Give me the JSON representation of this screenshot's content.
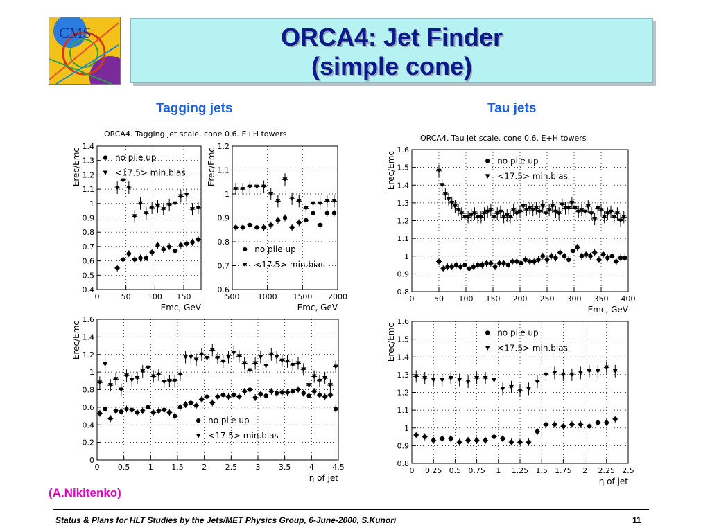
{
  "header": {
    "title_line1": "ORCA4: Jet Finder",
    "title_line2": "(simple cone)",
    "logo_text": "CMS"
  },
  "sections": {
    "tagging": "Tagging jets",
    "tau": "Tau jets"
  },
  "credit": "(A.Nikitenko)",
  "footer": {
    "text": "Status & Plans for HLT Studies by the Jets/MET Physics Group, 6-June-2000, S.Kunori",
    "page": "11"
  },
  "plot_titles": {
    "tagging": "ORCA4. Tagging jet scale. cone 0.6. E+H towers",
    "tau": "ORCA4. Tau jet scale. cone 0.6. E+H towers"
  },
  "legend": {
    "nopile": "no pile up",
    "minbias": "<17.5> min.bias"
  },
  "chart_data": [
    {
      "id": "tag-low",
      "type": "scatter",
      "xlabel": "Emc, GeV",
      "ylabel": "Erec/Emc",
      "xlim": [
        0,
        180
      ],
      "ylim": [
        0.4,
        1.4
      ],
      "xticks": [
        0,
        50,
        100,
        150
      ],
      "yticks": [
        0.4,
        0.5,
        0.6,
        0.7,
        0.8,
        0.9,
        1,
        1.1,
        1.2,
        1.3,
        1.4
      ],
      "grid": true,
      "legend_position": "top-left",
      "series": [
        {
          "name": "no pile up",
          "marker": "circle",
          "x": [
            35,
            45,
            55,
            65,
            75,
            85,
            95,
            105,
            115,
            125,
            135,
            145,
            155,
            165,
            175
          ],
          "y": [
            0.55,
            0.61,
            0.65,
            0.61,
            0.62,
            0.62,
            0.66,
            0.71,
            0.68,
            0.7,
            0.67,
            0.71,
            0.72,
            0.73,
            0.75
          ]
        },
        {
          "name": "<17.5> min.bias",
          "marker": "triangle",
          "x": [
            35,
            45,
            55,
            65,
            75,
            85,
            95,
            105,
            115,
            125,
            135,
            145,
            155,
            165,
            175
          ],
          "y": [
            1.11,
            1.16,
            1.11,
            0.91,
            1.0,
            0.93,
            0.97,
            0.98,
            0.96,
            0.99,
            1.0,
            1.05,
            1.06,
            0.96,
            0.97
          ]
        }
      ]
    },
    {
      "id": "tag-high",
      "type": "scatter",
      "xlabel": "Emc, GeV",
      "ylabel": "Erec/Emc",
      "xlim": [
        500,
        2000
      ],
      "ylim": [
        0.6,
        1.2
      ],
      "xticks": [
        500,
        1000,
        1500,
        2000
      ],
      "yticks": [
        0.6,
        0.7,
        0.8,
        0.9,
        1,
        1.1,
        1.2
      ],
      "grid": true,
      "legend_position": "bottom-left",
      "series": [
        {
          "name": "no pile up",
          "marker": "circle",
          "x": [
            550,
            650,
            750,
            850,
            950,
            1050,
            1150,
            1250,
            1350,
            1450,
            1550,
            1650,
            1750,
            1850,
            1950
          ],
          "y": [
            0.86,
            0.86,
            0.87,
            0.86,
            0.86,
            0.87,
            0.89,
            0.9,
            0.86,
            0.88,
            0.89,
            0.92,
            0.87,
            0.92,
            0.92
          ]
        },
        {
          "name": "<17.5> min.bias",
          "marker": "triangle",
          "x": [
            550,
            650,
            750,
            850,
            950,
            1050,
            1150,
            1250,
            1350,
            1450,
            1550,
            1650,
            1750,
            1850,
            1950
          ],
          "y": [
            1.02,
            1.02,
            1.03,
            1.03,
            1.03,
            1.0,
            0.97,
            1.06,
            0.98,
            0.97,
            0.94,
            0.96,
            0.96,
            0.97,
            0.97
          ]
        }
      ]
    },
    {
      "id": "tag-eta",
      "type": "scatter",
      "xlabel": "η of jet",
      "ylabel": "Erec/Emc",
      "xlim": [
        0,
        4.5
      ],
      "ylim": [
        0,
        1.6
      ],
      "xticks": [
        0,
        0.5,
        1,
        1.5,
        2,
        2.5,
        3,
        3.5,
        4,
        4.5
      ],
      "yticks": [
        0,
        0.2,
        0.4,
        0.6,
        0.8,
        1,
        1.2,
        1.4,
        1.6
      ],
      "grid": true,
      "legend_position": "bottom-right",
      "series": [
        {
          "name": "no pile up",
          "marker": "circle",
          "x": [
            0.05,
            0.15,
            0.25,
            0.35,
            0.45,
            0.55,
            0.65,
            0.75,
            0.85,
            0.95,
            1.05,
            1.15,
            1.25,
            1.35,
            1.45,
            1.55,
            1.65,
            1.75,
            1.85,
            1.95,
            2.05,
            2.15,
            2.25,
            2.35,
            2.45,
            2.55,
            2.65,
            2.75,
            2.85,
            2.95,
            3.05,
            3.15,
            3.25,
            3.35,
            3.45,
            3.55,
            3.65,
            3.75,
            3.85,
            3.95,
            4.05,
            4.15,
            4.25,
            4.35,
            4.45
          ],
          "y": [
            0.53,
            0.58,
            0.47,
            0.56,
            0.55,
            0.58,
            0.57,
            0.54,
            0.56,
            0.6,
            0.54,
            0.56,
            0.57,
            0.54,
            0.5,
            0.6,
            0.63,
            0.65,
            0.62,
            0.69,
            0.72,
            0.65,
            0.72,
            0.74,
            0.72,
            0.74,
            0.72,
            0.78,
            0.8,
            0.71,
            0.75,
            0.73,
            0.78,
            0.76,
            0.77,
            0.77,
            0.78,
            0.8,
            0.76,
            0.73,
            0.78,
            0.74,
            0.72,
            0.74,
            0.58
          ]
        },
        {
          "name": "<17.5> min.bias",
          "marker": "triangle",
          "x": [
            0.05,
            0.15,
            0.25,
            0.35,
            0.45,
            0.55,
            0.65,
            0.75,
            0.85,
            0.95,
            1.05,
            1.15,
            1.25,
            1.35,
            1.45,
            1.55,
            1.65,
            1.75,
            1.85,
            1.95,
            2.05,
            2.15,
            2.25,
            2.35,
            2.45,
            2.55,
            2.65,
            2.75,
            2.85,
            2.95,
            3.05,
            3.15,
            3.25,
            3.35,
            3.45,
            3.55,
            3.65,
            3.75,
            3.85,
            3.95,
            4.05,
            4.15,
            4.25,
            4.35,
            4.45
          ],
          "y": [
            0.88,
            1.09,
            0.85,
            0.92,
            0.8,
            0.96,
            0.91,
            0.93,
            1.01,
            1.05,
            0.95,
            0.97,
            0.89,
            0.9,
            0.9,
            0.97,
            1.17,
            1.17,
            1.14,
            1.2,
            1.16,
            1.25,
            1.16,
            1.12,
            1.17,
            1.22,
            1.18,
            1.1,
            1.02,
            1.1,
            1.17,
            1.07,
            1.2,
            1.17,
            1.13,
            1.12,
            1.08,
            1.1,
            1.03,
            0.85,
            0.95,
            0.9,
            0.93,
            0.85,
            1.06
          ]
        }
      ]
    },
    {
      "id": "tau-emc",
      "type": "scatter",
      "xlabel": "Emc, GeV",
      "ylabel": "Erec/Emc",
      "xlim": [
        0,
        400
      ],
      "ylim": [
        0.8,
        1.6
      ],
      "xticks": [
        0,
        50,
        100,
        150,
        200,
        250,
        300,
        350,
        400
      ],
      "yticks": [
        0.8,
        0.9,
        1,
        1.1,
        1.2,
        1.3,
        1.4,
        1.5,
        1.6
      ],
      "grid": true,
      "legend_position": "top-center",
      "series": [
        {
          "name": "no pile up",
          "marker": "circle",
          "x": [
            50,
            58,
            66,
            74,
            82,
            90,
            98,
            106,
            114,
            122,
            130,
            138,
            146,
            154,
            162,
            170,
            178,
            186,
            194,
            202,
            210,
            218,
            226,
            234,
            242,
            250,
            258,
            266,
            274,
            282,
            290,
            298,
            306,
            314,
            322,
            330,
            338,
            346,
            354,
            362,
            370,
            378,
            386,
            394
          ],
          "y": [
            0.97,
            0.93,
            0.94,
            0.94,
            0.95,
            0.94,
            0.95,
            0.93,
            0.94,
            0.95,
            0.95,
            0.96,
            0.96,
            0.94,
            0.96,
            0.96,
            0.95,
            0.97,
            0.97,
            0.96,
            0.98,
            0.97,
            0.97,
            0.98,
            1.0,
            0.98,
            1.0,
            0.99,
            1.02,
            1.0,
            0.98,
            1.03,
            1.05,
            1.0,
            1.01,
            1.0,
            1.02,
            0.98,
            1.01,
            0.99,
            1.0,
            0.97,
            0.99,
            0.99
          ]
        },
        {
          "name": "<17.5> min.bias",
          "marker": "triangle",
          "x": [
            50,
            56,
            62,
            68,
            74,
            80,
            86,
            92,
            98,
            104,
            110,
            116,
            122,
            128,
            134,
            140,
            146,
            152,
            158,
            164,
            170,
            176,
            182,
            188,
            194,
            200,
            206,
            212,
            218,
            224,
            230,
            236,
            242,
            248,
            254,
            260,
            266,
            272,
            278,
            284,
            290,
            296,
            302,
            308,
            314,
            320,
            326,
            332,
            338,
            344,
            350,
            356,
            362,
            368,
            374,
            380,
            386,
            392
          ],
          "y": [
            1.48,
            1.4,
            1.35,
            1.32,
            1.3,
            1.28,
            1.26,
            1.24,
            1.22,
            1.22,
            1.23,
            1.24,
            1.22,
            1.22,
            1.24,
            1.25,
            1.26,
            1.22,
            1.24,
            1.25,
            1.22,
            1.23,
            1.22,
            1.26,
            1.24,
            1.25,
            1.28,
            1.26,
            1.27,
            1.26,
            1.27,
            1.25,
            1.28,
            1.24,
            1.26,
            1.28,
            1.25,
            1.24,
            1.29,
            1.27,
            1.27,
            1.3,
            1.27,
            1.25,
            1.26,
            1.25,
            1.28,
            1.24,
            1.21,
            1.27,
            1.26,
            1.22,
            1.24,
            1.25,
            1.22,
            1.24,
            1.2,
            1.22
          ]
        }
      ]
    },
    {
      "id": "tau-eta",
      "type": "scatter",
      "xlabel": "η of jet",
      "ylabel": "Erec/Emc",
      "xlim": [
        0,
        2.5
      ],
      "ylim": [
        0.8,
        1.6
      ],
      "xticks": [
        0,
        0.25,
        0.5,
        0.75,
        1,
        1.25,
        1.5,
        1.75,
        2,
        2.25,
        2.5
      ],
      "xtick_labels": [
        "0",
        "0.25",
        "0.5",
        "0.75",
        "1",
        "1.25",
        "1.5",
        "1.75",
        "2",
        "2.25",
        "2.5"
      ],
      "yticks": [
        0.8,
        0.9,
        1,
        1.1,
        1.2,
        1.3,
        1.4,
        1.5,
        1.6
      ],
      "grid": true,
      "legend_position": "top-center",
      "series": [
        {
          "name": "no pile up",
          "marker": "circle",
          "x": [
            0.05,
            0.15,
            0.25,
            0.35,
            0.45,
            0.55,
            0.65,
            0.75,
            0.85,
            0.95,
            1.05,
            1.15,
            1.25,
            1.35,
            1.45,
            1.55,
            1.65,
            1.75,
            1.85,
            1.95,
            2.05,
            2.15,
            2.25,
            2.35
          ],
          "y": [
            0.96,
            0.95,
            0.93,
            0.94,
            0.94,
            0.92,
            0.93,
            0.93,
            0.93,
            0.95,
            0.94,
            0.92,
            0.92,
            0.92,
            0.98,
            1.02,
            1.02,
            1.01,
            1.02,
            1.02,
            1.01,
            1.03,
            1.03,
            1.05
          ]
        },
        {
          "name": "<17.5> min.bias",
          "marker": "triangle",
          "x": [
            0.05,
            0.15,
            0.25,
            0.35,
            0.45,
            0.55,
            0.65,
            0.75,
            0.85,
            0.95,
            1.05,
            1.15,
            1.25,
            1.35,
            1.45,
            1.55,
            1.65,
            1.75,
            1.85,
            1.95,
            2.05,
            2.15,
            2.25,
            2.35
          ],
          "y": [
            1.29,
            1.28,
            1.27,
            1.27,
            1.28,
            1.27,
            1.26,
            1.28,
            1.28,
            1.27,
            1.22,
            1.23,
            1.21,
            1.22,
            1.26,
            1.3,
            1.31,
            1.3,
            1.3,
            1.31,
            1.32,
            1.32,
            1.34,
            1.32
          ]
        }
      ]
    }
  ]
}
